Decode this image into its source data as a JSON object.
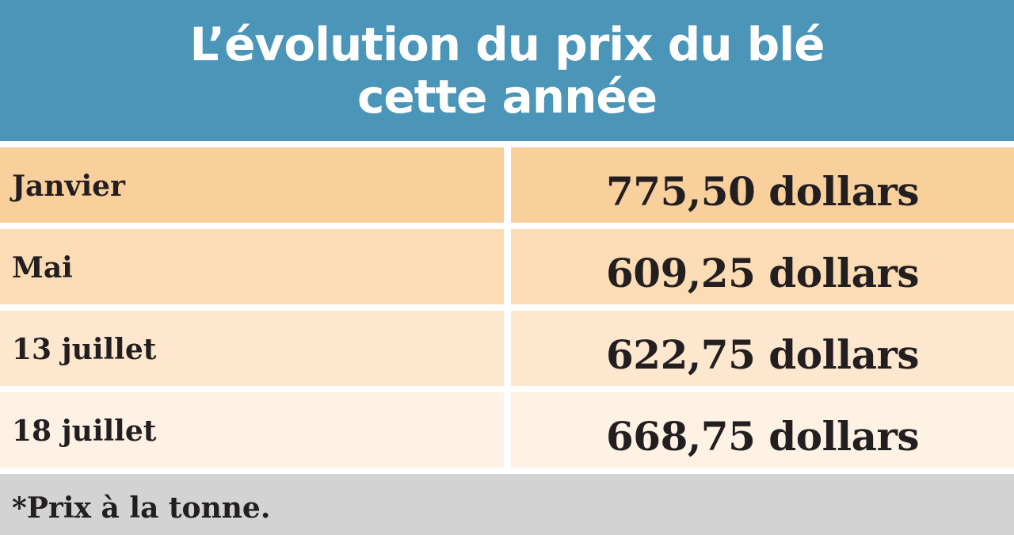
{
  "chart_data": {
    "type": "table",
    "title_line1": "L’évolution du prix du blé",
    "title_line2": "cette année",
    "rows": [
      {
        "label": "Janvier",
        "value": 775.5,
        "display": "775,50 dollars",
        "color": "#f9cf9c"
      },
      {
        "label": "Mai",
        "value": 609.25,
        "display": "609,25 dollars",
        "color": "#fbdcb4"
      },
      {
        "label": "13 juillet",
        "value": 622.75,
        "display": "622,75 dollars",
        "color": "#fde8cf"
      },
      {
        "label": "18 juillet",
        "value": 668.75,
        "display": "668,75 dollars",
        "color": "#fef2e4"
      }
    ],
    "footnote": "*Prix à la tonne."
  },
  "colors": {
    "header_bg": "#4a95b8",
    "footer_bg": "#d3d3d3"
  }
}
